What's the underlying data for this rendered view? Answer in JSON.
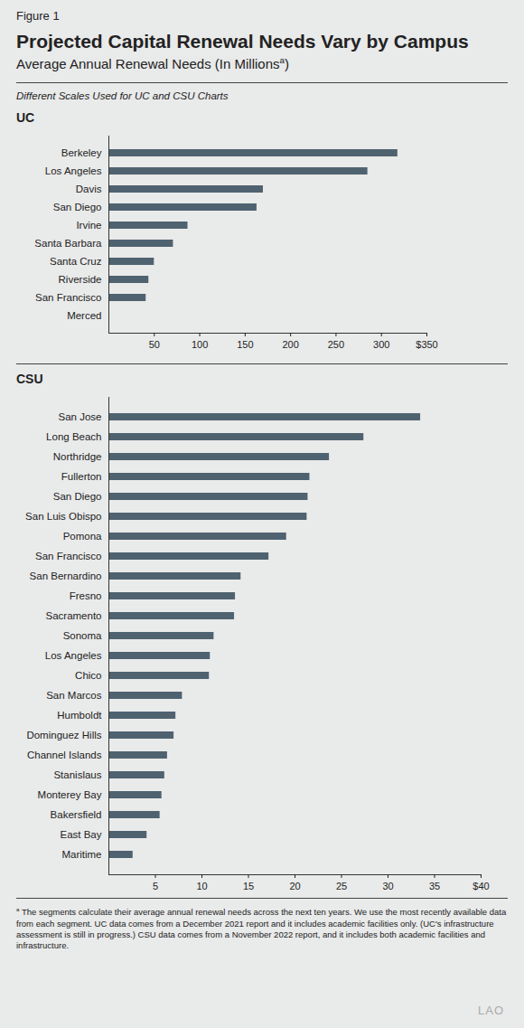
{
  "figure_label": "Figure 1",
  "title": "Projected Capital Renewal Needs Vary by Campus",
  "subtitle": {
    "text": "Average Annual Renewal Needs (In Millions",
    "marker": "a",
    "end": ")"
  },
  "note": "Different Scales Used for UC and CSU Charts",
  "footnote": {
    "marker": "a",
    "text": "The segments calculate their average annual renewal needs across the next ten years. We use the most recently available data from each segment. UC data comes from a December 2021 report and it includes academic facilities only. (UC's infrastructure assessment is still in progress.) CSU data comes from a November 2022 report, and it includes both academic facilities and infrastructure."
  },
  "logo": "LAO",
  "chart_data": [
    {
      "type": "bar",
      "title": "UC",
      "orientation": "horizontal",
      "grid": false,
      "color": "#4f6270",
      "categories": [
        "Berkeley",
        "Los Angeles",
        "Davis",
        "San Diego",
        "Irvine",
        "Santa Barbara",
        "Santa Cruz",
        "Riverside",
        "San Francisco",
        "Merced"
      ],
      "values": [
        318,
        285,
        170,
        163,
        87,
        71,
        50,
        44,
        41,
        1
      ],
      "xlim": [
        0,
        350
      ],
      "xticks": [
        50,
        100,
        150,
        200,
        250,
        300,
        {
          "value": 350,
          "label": "$350"
        }
      ]
    },
    {
      "type": "bar",
      "title": "CSU",
      "orientation": "horizontal",
      "grid": false,
      "color": "#4f6270",
      "categories": [
        "San Jose",
        "Long Beach",
        "Northridge",
        "Fullerton",
        "San Diego",
        "San Luis Obispo",
        "Pomona",
        "San Francisco",
        "San Bernardino",
        "Fresno",
        "Sacramento",
        "Sonoma",
        "Los Angeles",
        "Chico",
        "San Marcos",
        "Humboldt",
        "Dominguez Hills",
        "Channel Islands",
        "Stanislaus",
        "Monterey Bay",
        "Bakersfield",
        "East Bay",
        "Maritime"
      ],
      "values": [
        33.5,
        27.4,
        23.7,
        21.6,
        21.4,
        21.3,
        19.1,
        17.2,
        14.2,
        13.6,
        13.5,
        11.3,
        10.9,
        10.8,
        7.9,
        7.2,
        7.0,
        6.3,
        6.0,
        5.7,
        5.5,
        4.1,
        2.6
      ],
      "xlim": [
        0,
        40
      ],
      "xticks": [
        5,
        10,
        15,
        20,
        25,
        30,
        35,
        {
          "value": 40,
          "label": "$40"
        }
      ]
    }
  ]
}
